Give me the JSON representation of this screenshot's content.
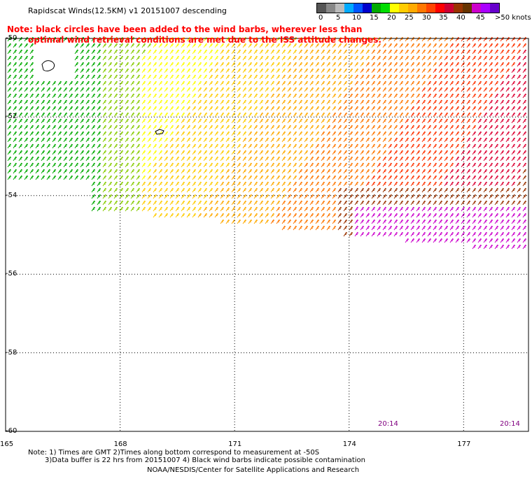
{
  "title": "Rapidscat Winds(12.5KM) v1 20151007 descending",
  "note": {
    "line1": "Note: black circles have been added to the wind barbs, wherever less than",
    "line2": "optimal wind retrieval conditions are met due to the ISS attitude changes."
  },
  "colorbar": {
    "colors": [
      "#555555",
      "#888888",
      "#bbbbbb",
      "#00aaff",
      "#0055ff",
      "#0000cc",
      "#00aa00",
      "#00dd00",
      "#ffff00",
      "#ffcc00",
      "#ffaa00",
      "#ff7700",
      "#ff4400",
      "#ff0000",
      "#cc0033",
      "#993300",
      "#663300",
      "#cc00cc",
      "#aa00ff",
      "#6600cc"
    ],
    "labels": [
      "0",
      "5",
      "10",
      "15",
      "20",
      "25",
      "30",
      "35",
      "40",
      "45",
      ">50 knots"
    ]
  },
  "lat_labels": [
    "-50",
    "-52",
    "-54",
    "-56",
    "-58",
    "-60"
  ],
  "lon_labels": [
    "165",
    "168",
    "171",
    "174",
    "177"
  ],
  "times": [
    "20:14",
    "20:14"
  ],
  "footer": {
    "line1": "Note: 1) Times are GMT 2)Times along bottom correspond to measurement at -50S",
    "line2": "3)Data buffer is 22 hrs from 20151007 4) Black wind barbs indicate possible contamination",
    "line3": "NOAA/NESDIS/Center for Satellite Applications and Research"
  },
  "map": {
    "lat_range": [
      -60,
      -50
    ],
    "lon_range": [
      165,
      178.7
    ],
    "swath_color_bands": [
      "#00aa00",
      "#88cc00",
      "#ffff00",
      "#ffcc00",
      "#ffaa00",
      "#ff7700",
      "#ff3300",
      "#dd0033",
      "#993300",
      "#cc00cc"
    ]
  }
}
